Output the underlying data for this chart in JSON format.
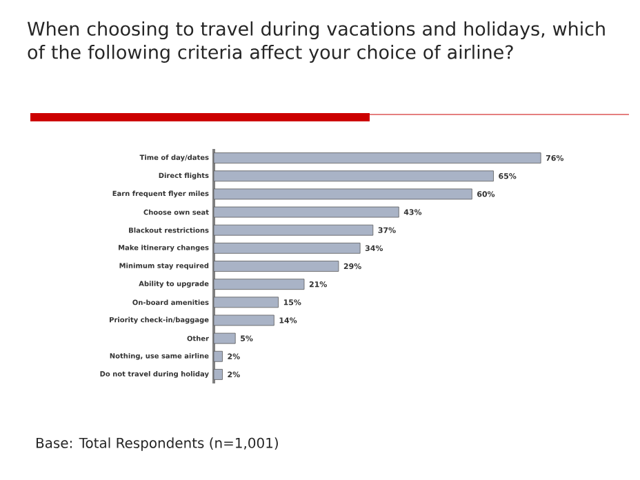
{
  "chart_data": {
    "type": "bar",
    "orientation": "horizontal",
    "title": "When choosing to travel during vacations and holidays, which of the following criteria affect your choice of airline?",
    "categories": [
      "Time of day/dates",
      "Direct flights",
      "Earn frequent flyer miles",
      "Choose own seat",
      "Blackout restrictions",
      "Make itinerary changes",
      "Minimum stay required",
      "Ability to upgrade",
      "On-board amenities",
      "Priority check-in/baggage",
      "Other",
      "Nothing, use same airline",
      "Do not travel during holiday"
    ],
    "values": [
      76,
      65,
      60,
      43,
      37,
      34,
      29,
      21,
      15,
      14,
      5,
      2,
      2
    ],
    "value_labels": [
      "76%",
      "65%",
      "60%",
      "43%",
      "37%",
      "34%",
      "29%",
      "21%",
      "15%",
      "14%",
      "5%",
      "2%",
      "2%"
    ],
    "color": "#a9b3c6",
    "annotations": [
      "Base: Total Respondents (n=1,001)"
    ]
  }
}
